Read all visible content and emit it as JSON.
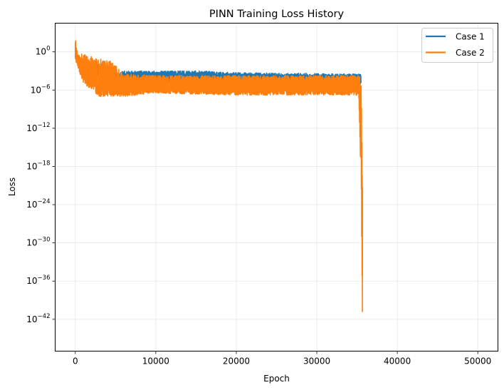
{
  "chart_data": {
    "type": "line",
    "title": "PINN Training Loss History",
    "xlabel": "Epoch",
    "ylabel": "Loss",
    "xlim": [
      -2500,
      52500
    ],
    "ylim_log10": [
      -47,
      4.5
    ],
    "yscale": "log",
    "grid": true,
    "legend_position": "top-right",
    "x_ticks": [
      0,
      10000,
      20000,
      30000,
      40000,
      50000
    ],
    "x_tick_labels": [
      "0",
      "10000",
      "20000",
      "30000",
      "40000",
      "50000"
    ],
    "y_ticks_log10": [
      0,
      -6,
      -12,
      -18,
      -24,
      -30,
      -36,
      -42
    ],
    "y_tick_labels": [
      {
        "base": "10",
        "exp": "0"
      },
      {
        "base": "10",
        "exp": "−6"
      },
      {
        "base": "10",
        "exp": "−12"
      },
      {
        "base": "10",
        "exp": "−18"
      },
      {
        "base": "10",
        "exp": "−24"
      },
      {
        "base": "10",
        "exp": "−30"
      },
      {
        "base": "10",
        "exp": "−36"
      },
      {
        "base": "10",
        "exp": "−42"
      }
    ],
    "series": [
      {
        "name": "Case 1",
        "color": "#1f77b4",
        "envelope": [
          {
            "x": 0,
            "upper_log10": 2.0,
            "lower_log10": -1.2
          },
          {
            "x": 300,
            "upper_log10": -1.0,
            "lower_log10": -2.0
          },
          {
            "x": 2000,
            "upper_log10": -1.5,
            "lower_log10": -3.5
          },
          {
            "x": 5000,
            "upper_log10": -3.5,
            "lower_log10": -5.0
          },
          {
            "x": 6000,
            "upper_log10": -3.0,
            "lower_log10": -5.0
          },
          {
            "x": 16000,
            "upper_log10": -3.0,
            "lower_log10": -5.0
          },
          {
            "x": 18000,
            "upper_log10": -3.2,
            "lower_log10": -5.2
          },
          {
            "x": 35500,
            "upper_log10": -3.5,
            "lower_log10": -5.2
          }
        ]
      },
      {
        "name": "Case 2",
        "color": "#ff7f0e",
        "envelope": [
          {
            "x": 0,
            "upper_log10": 2.3,
            "lower_log10": -1.6
          },
          {
            "x": 300,
            "upper_log10": -0.5,
            "lower_log10": -2.5
          },
          {
            "x": 1000,
            "upper_log10": -0.3,
            "lower_log10": -5.0
          },
          {
            "x": 3000,
            "upper_log10": -1.0,
            "lower_log10": -7.0
          },
          {
            "x": 4500,
            "upper_log10": -1.5,
            "lower_log10": -7.0
          },
          {
            "x": 6000,
            "upper_log10": -3.5,
            "lower_log10": -7.0
          },
          {
            "x": 10000,
            "upper_log10": -3.7,
            "lower_log10": -6.5
          },
          {
            "x": 20000,
            "upper_log10": -3.7,
            "lower_log10": -6.8
          },
          {
            "x": 35200,
            "upper_log10": -3.7,
            "lower_log10": -6.8
          },
          {
            "x": 35500,
            "upper_log10": -4.0,
            "lower_log10": -20.0
          },
          {
            "x": 35700,
            "upper_log10": -20.0,
            "lower_log10": -47.0
          }
        ]
      }
    ]
  }
}
